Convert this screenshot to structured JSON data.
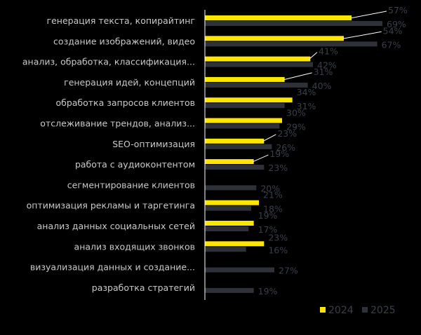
{
  "chart_data": {
    "type": "bar",
    "orientation": "horizontal",
    "categories": [
      "генерация текста, копирайтинг",
      "создание изображений, видео",
      "анализ, обработка, классификация...",
      "генерация идей, концепций",
      "обработка запросов клиентов",
      "отслеживание трендов, анализ...",
      "SEO-оптимизация",
      "работа с аудиоконтентом",
      "сегментирование клиентов",
      "оптимизация рекламы и таргетинга",
      "анализ данных социальных сетей",
      "анализ входящих звонков",
      "визуализация данных и создание...",
      "разработка стратегий"
    ],
    "series": [
      {
        "name": "2024",
        "color": "#ffe600",
        "values": [
          57,
          54,
          41,
          31,
          34,
          30,
          23,
          19,
          null,
          21,
          19,
          23,
          null,
          null
        ],
        "labels": [
          "57%",
          "54%",
          "41%",
          "31%",
          "34%",
          "30%",
          "23%",
          "19%",
          "",
          "21%",
          "19%",
          "23%",
          "",
          ""
        ]
      },
      {
        "name": "2025",
        "color": "#2e3138",
        "values": [
          69,
          67,
          42,
          40,
          31,
          29,
          26,
          23,
          20,
          18,
          17,
          16,
          27,
          19
        ],
        "labels": [
          "69%",
          "67%",
          "42%",
          "40%",
          "31%",
          "29%",
          "26%",
          "23%",
          "20%",
          "18%",
          "17%",
          "16%",
          "27%",
          "19%"
        ]
      }
    ],
    "xlim": [
      0,
      69
    ],
    "grid": false,
    "legend": "bottom-right",
    "value_label_color": "#3a3f47",
    "category_label_color": "#c9c9c9",
    "axis_color": "#ffffff",
    "background": "#000000"
  }
}
